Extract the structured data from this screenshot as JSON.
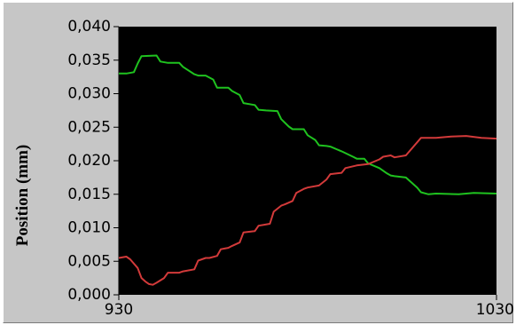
{
  "chart_data": {
    "type": "line",
    "title": "",
    "xlabel": "",
    "ylabel": "Position (mm)",
    "xlim": [
      930,
      1030
    ],
    "ylim": [
      0.0,
      0.04
    ],
    "x_ticks": [
      {
        "value": 930,
        "label": "930"
      },
      {
        "value": 1030,
        "label": "1030"
      }
    ],
    "y_ticks": [
      {
        "value": 0.0,
        "label": "0,000"
      },
      {
        "value": 0.005,
        "label": "0,005"
      },
      {
        "value": 0.01,
        "label": "0,010"
      },
      {
        "value": 0.015,
        "label": "0,015"
      },
      {
        "value": 0.02,
        "label": "0,020"
      },
      {
        "value": 0.025,
        "label": "0,025"
      },
      {
        "value": 0.03,
        "label": "0,030"
      },
      {
        "value": 0.035,
        "label": "0,035"
      },
      {
        "value": 0.04,
        "label": "0,040"
      }
    ],
    "grid": false,
    "legend": "none",
    "plot_background": "#000000",
    "series": [
      {
        "color": "#1fc21f",
        "x": [
          930,
          932,
          934,
          935,
          936,
          940,
          941,
          943,
          946,
          947,
          950,
          951,
          953,
          955,
          956,
          959,
          960,
          962,
          963,
          966,
          967,
          969,
          972,
          973,
          975,
          976,
          979,
          980,
          982,
          983,
          985,
          986,
          989,
          992,
          993,
          995,
          996,
          999,
          1001,
          1002,
          1003,
          1006,
          1009,
          1010,
          1012,
          1014,
          1020,
          1024,
          1030
        ],
        "y": [
          0.033,
          0.033,
          0.0332,
          0.0345,
          0.0356,
          0.0357,
          0.0348,
          0.0346,
          0.0346,
          0.034,
          0.0329,
          0.0327,
          0.0327,
          0.0321,
          0.0309,
          0.0309,
          0.0304,
          0.0298,
          0.0286,
          0.0283,
          0.0276,
          0.0275,
          0.0274,
          0.0262,
          0.0251,
          0.0247,
          0.0247,
          0.0238,
          0.0231,
          0.0223,
          0.0222,
          0.0221,
          0.0214,
          0.0206,
          0.0203,
          0.0203,
          0.0196,
          0.0189,
          0.0181,
          0.0178,
          0.0177,
          0.0175,
          0.016,
          0.0153,
          0.015,
          0.0151,
          0.015,
          0.0152,
          0.0151
        ]
      },
      {
        "color": "#d23a3a",
        "x": [
          930,
          932,
          933,
          935,
          936,
          937,
          938,
          939,
          940,
          942,
          943,
          946,
          947,
          950,
          951,
          953,
          954,
          956,
          957,
          959,
          960,
          962,
          963,
          966,
          967,
          970,
          971,
          973,
          974,
          976,
          977,
          979,
          980,
          983,
          985,
          986,
          989,
          990,
          993,
          996,
          999,
          1000,
          1002,
          1003,
          1006,
          1010,
          1014,
          1018,
          1022,
          1026,
          1030
        ],
        "y": [
          0.0055,
          0.0057,
          0.0053,
          0.004,
          0.0025,
          0.002,
          0.0016,
          0.0015,
          0.0018,
          0.0025,
          0.0033,
          0.0033,
          0.0035,
          0.0038,
          0.0051,
          0.0055,
          0.0055,
          0.0058,
          0.0068,
          0.007,
          0.0073,
          0.0078,
          0.0093,
          0.0095,
          0.0103,
          0.0106,
          0.0124,
          0.0133,
          0.0135,
          0.014,
          0.0152,
          0.0158,
          0.016,
          0.0163,
          0.0172,
          0.018,
          0.0182,
          0.0189,
          0.0193,
          0.0195,
          0.0202,
          0.0206,
          0.0208,
          0.0205,
          0.0208,
          0.0234,
          0.0234,
          0.0236,
          0.0237,
          0.0234,
          0.0233
        ]
      }
    ]
  }
}
